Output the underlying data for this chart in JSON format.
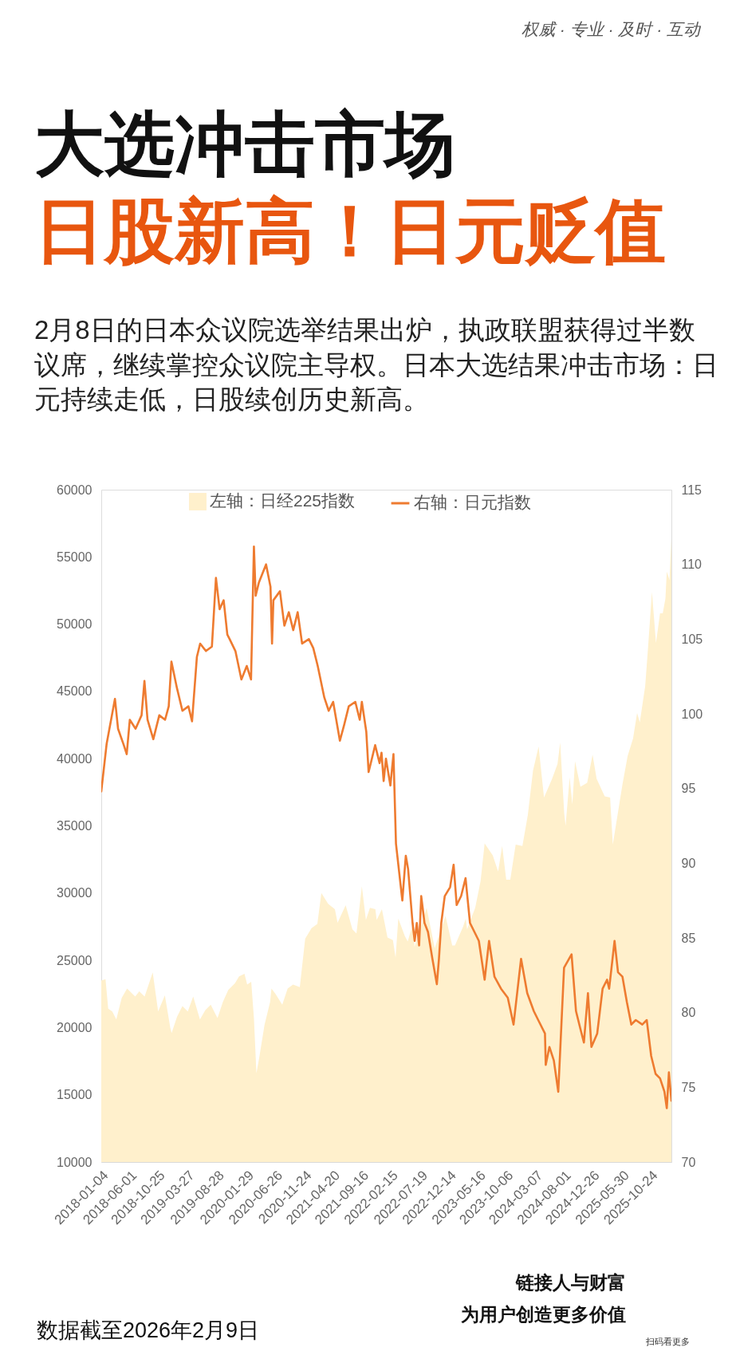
{
  "chart_data": {
    "type": "area",
    "title": "大选冲击市场",
    "subtitle": "日股新高！日元贬值",
    "annotations": [
      "权威 · 专业 · 及时 · 互动",
      "2月8日的日本众议院选举结果出炉，执政联盟获得过半数议席，继续掌控众议院主导权。日本大选结果冲击市场：日元持续走低，日股续创历史新高。",
      "数据截至2026年2月9日",
      "链接人与财富",
      "为用户创造更多价值",
      "扫码看更多"
    ],
    "legend": "top",
    "xlim": [
      "2018-01-04",
      "2026-02-09"
    ],
    "xticks": [
      "2018-01-04",
      "2018-06-01",
      "2018-10-25",
      "2019-03-27",
      "2019-08-28",
      "2020-01-29",
      "2020-06-26",
      "2020-11-24",
      "2021-04-20",
      "2021-09-16",
      "2022-02-15",
      "2022-07-19",
      "2022-12-14",
      "2023-05-16",
      "2023-10-06",
      "2024-03-07",
      "2024-08-01",
      "2024-12-26",
      "2025-05-30",
      "2025-10-24"
    ],
    "ylim": [
      10000,
      60000
    ],
    "yticks": [
      10000,
      15000,
      20000,
      25000,
      30000,
      35000,
      40000,
      45000,
      50000,
      55000,
      60000
    ],
    "y2lim": [
      70,
      115
    ],
    "y2ticks": [
      70,
      75,
      80,
      85,
      90,
      95,
      100,
      105,
      110,
      115
    ],
    "series": [
      {
        "name": "左轴：日经225指数",
        "axis": "y",
        "color": "#fff0cc",
        "x": [
          "2018-01-04",
          "2018-01-26",
          "2018-02-09",
          "2018-03-02",
          "2018-03-23",
          "2018-04-20",
          "2018-05-18",
          "2018-06-29",
          "2018-07-20",
          "2018-08-17",
          "2018-09-28",
          "2018-10-26",
          "2018-11-30",
          "2018-12-28",
          "2019-01-04",
          "2019-02-01",
          "2019-03-01",
          "2019-03-29",
          "2019-04-26",
          "2019-05-31",
          "2019-06-28",
          "2019-07-26",
          "2019-08-30",
          "2019-09-27",
          "2019-10-25",
          "2019-11-29",
          "2019-12-20",
          "2020-01-17",
          "2020-01-31",
          "2020-02-21",
          "2020-03-06",
          "2020-03-19",
          "2020-04-03",
          "2020-04-30",
          "2020-05-29",
          "2020-06-05",
          "2020-06-26",
          "2020-07-31",
          "2020-08-28",
          "2020-09-25",
          "2020-10-30",
          "2020-11-27",
          "2020-12-30",
          "2021-01-29",
          "2021-02-19",
          "2021-03-26",
          "2021-04-30",
          "2021-05-14",
          "2021-06-25",
          "2021-07-30",
          "2021-08-20",
          "2021-09-17",
          "2021-10-08",
          "2021-10-29",
          "2021-11-26",
          "2021-12-03",
          "2021-12-30",
          "2022-01-28",
          "2022-02-25",
          "2022-03-11",
          "2022-03-25",
          "2022-04-28",
          "2022-05-13",
          "2022-06-10",
          "2022-06-17",
          "2022-08-19",
          "2022-09-30",
          "2022-10-28",
          "2022-11-25",
          "2022-12-30",
          "2023-01-13",
          "2023-02-24",
          "2023-03-10",
          "2023-03-17",
          "2023-04-28",
          "2023-05-26",
          "2023-06-16",
          "2023-07-28",
          "2023-08-25",
          "2023-09-15",
          "2023-10-06",
          "2023-10-27",
          "2023-11-24",
          "2023-12-29",
          "2024-01-26",
          "2024-02-22",
          "2024-03-22",
          "2024-04-19",
          "2024-05-31",
          "2024-06-28",
          "2024-07-12",
          "2024-08-02",
          "2024-08-09",
          "2024-08-30",
          "2024-09-13",
          "2024-09-27",
          "2024-10-25",
          "2024-11-29",
          "2024-12-27",
          "2025-01-17",
          "2025-02-28",
          "2025-03-28",
          "2025-04-11",
          "2025-05-30",
          "2025-06-27",
          "2025-07-25",
          "2025-08-15",
          "2025-08-29",
          "2025-09-26",
          "2025-10-10",
          "2025-10-31",
          "2025-11-21",
          "2025-12-12",
          "2025-12-26",
          "2026-01-09",
          "2026-01-16",
          "2026-01-30",
          "2026-02-09"
        ],
        "values": [
          23500,
          23600,
          21400,
          21200,
          20600,
          22200,
          22900,
          22300,
          22700,
          22300,
          24100,
          21200,
          22400,
          20000,
          19600,
          20800,
          21600,
          21200,
          22300,
          20600,
          21300,
          21700,
          20700,
          21900,
          22800,
          23300,
          23800,
          24000,
          23200,
          23400,
          20700,
          16600,
          17800,
          20200,
          21900,
          22900,
          22500,
          21700,
          22900,
          23200,
          23000,
          26600,
          27400,
          27700,
          30000,
          29200,
          28800,
          27800,
          29100,
          27300,
          27000,
          30500,
          28000,
          28900,
          28800,
          28000,
          28800,
          26700,
          26500,
          25200,
          28100,
          26800,
          26400,
          27800,
          26000,
          28900,
          25900,
          27100,
          28300,
          26100,
          26100,
          27500,
          28100,
          27300,
          28900,
          30900,
          33700,
          32800,
          31600,
          33500,
          31000,
          31000,
          33600,
          33500,
          35800,
          39100,
          40900,
          37100,
          38500,
          39600,
          41200,
          35900,
          35000,
          38600,
          36600,
          39800,
          37900,
          38200,
          40300,
          38500,
          37200,
          37100,
          33600,
          38000,
          40200,
          41500,
          43400,
          42700,
          45400,
          48100,
          52400,
          48600,
          50800,
          50800,
          51900,
          53900,
          53300,
          56400
        ]
      },
      {
        "name": "右轴：日元指数",
        "type": "line",
        "axis": "y2",
        "color": "#ee7b30",
        "x": [
          "2018-01-04",
          "2018-02-01",
          "2018-03-16",
          "2018-04-01",
          "2018-05-01",
          "2018-05-16",
          "2018-06-01",
          "2018-07-01",
          "2018-08-01",
          "2018-08-16",
          "2018-09-01",
          "2018-10-01",
          "2018-11-01",
          "2018-12-01",
          "2018-12-20",
          "2019-01-03",
          "2019-02-01",
          "2019-03-01",
          "2019-04-01",
          "2019-04-20",
          "2019-05-15",
          "2019-06-01",
          "2019-07-01",
          "2019-08-01",
          "2019-08-22",
          "2019-09-10",
          "2019-10-01",
          "2019-10-20",
          "2019-11-01",
          "2019-12-01",
          "2020-01-01",
          "2020-01-29",
          "2020-02-20",
          "2020-03-06",
          "2020-03-15",
          "2020-04-01",
          "2020-05-08",
          "2020-05-31",
          "2020-06-08",
          "2020-06-15",
          "2020-07-19",
          "2020-08-11",
          "2020-09-03",
          "2020-09-26",
          "2020-10-19",
          "2020-11-11",
          "2020-12-16",
          "2021-01-08",
          "2021-01-31",
          "2021-03-06",
          "2021-03-29",
          "2021-04-21",
          "2021-05-26",
          "2021-06-18",
          "2021-07-11",
          "2021-08-14",
          "2021-09-06",
          "2021-09-17",
          "2021-10-10",
          "2021-10-22",
          "2021-11-25",
          "2021-12-18",
          "2021-12-28",
          "2022-01-08",
          "2022-01-20",
          "2022-02-12",
          "2022-02-28",
          "2022-03-13",
          "2022-04-15",
          "2022-05-03",
          "2022-05-15",
          "2022-06-07",
          "2022-06-18",
          "2022-06-29",
          "2022-07-11",
          "2022-07-22",
          "2022-08-08",
          "2022-08-26",
          "2022-09-18",
          "2022-10-11",
          "2022-10-22",
          "2022-11-03",
          "2022-11-21",
          "2022-12-19",
          "2023-01-06",
          "2023-01-22",
          "2023-02-14",
          "2023-03-09",
          "2023-04-01",
          "2023-04-24",
          "2023-05-17",
          "2023-06-16",
          "2023-07-09",
          "2023-08-06",
          "2023-09-09",
          "2023-10-14",
          "2023-11-13",
          "2023-12-22",
          "2024-01-23",
          "2024-02-26",
          "2024-03-20",
          "2024-04-24",
          "2024-04-28",
          "2024-05-17",
          "2024-06-09",
          "2024-07-02",
          "2024-08-01",
          "2024-09-09",
          "2024-10-02",
          "2024-10-25",
          "2024-11-12",
          "2024-12-03",
          "2024-12-21",
          "2025-01-20",
          "2025-02-17",
          "2025-03-12",
          "2025-03-23",
          "2025-04-20",
          "2025-05-08",
          "2025-05-31",
          "2025-06-23",
          "2025-07-16",
          "2025-08-08",
          "2025-09-11",
          "2025-10-04",
          "2025-10-27",
          "2025-11-19",
          "2025-12-12",
          "2026-01-04",
          "2026-01-16",
          "2026-01-27",
          "2026-02-09"
        ],
        "values": [
          94.8,
          98.0,
          101.0,
          99.0,
          97.9,
          97.3,
          99.6,
          99.0,
          99.9,
          102.2,
          99.6,
          98.3,
          99.9,
          99.6,
          100.5,
          103.5,
          101.7,
          100.2,
          100.5,
          99.5,
          103.8,
          104.7,
          104.2,
          104.5,
          109.1,
          107.0,
          107.6,
          105.3,
          105.0,
          104.2,
          102.3,
          103.2,
          102.3,
          111.2,
          107.9,
          108.8,
          110.0,
          108.5,
          104.7,
          107.6,
          108.2,
          105.9,
          106.8,
          105.6,
          106.8,
          104.7,
          105.0,
          104.4,
          103.2,
          101.1,
          100.2,
          100.8,
          98.2,
          99.3,
          100.5,
          100.8,
          99.6,
          100.8,
          98.8,
          96.1,
          97.9,
          96.7,
          97.4,
          95.5,
          97.0,
          95.2,
          97.3,
          91.3,
          87.5,
          90.5,
          89.6,
          86.0,
          84.8,
          86.0,
          84.5,
          87.8,
          86.0,
          85.4,
          83.6,
          81.9,
          83.6,
          86.0,
          87.8,
          88.4,
          89.9,
          87.2,
          87.8,
          89.0,
          86.0,
          85.4,
          84.8,
          82.2,
          84.8,
          82.4,
          81.6,
          81.0,
          79.2,
          83.6,
          81.3,
          80.1,
          79.5,
          78.6,
          76.5,
          77.7,
          76.8,
          74.7,
          83.0,
          83.9,
          80.1,
          78.9,
          78.0,
          81.3,
          77.7,
          78.6,
          81.6,
          82.2,
          81.6,
          84.8,
          82.7,
          82.4,
          80.7,
          79.2,
          79.5,
          79.2,
          79.5,
          77.1,
          75.9,
          75.6,
          74.7,
          73.6,
          76.0,
          74.1
        ]
      }
    ]
  }
}
